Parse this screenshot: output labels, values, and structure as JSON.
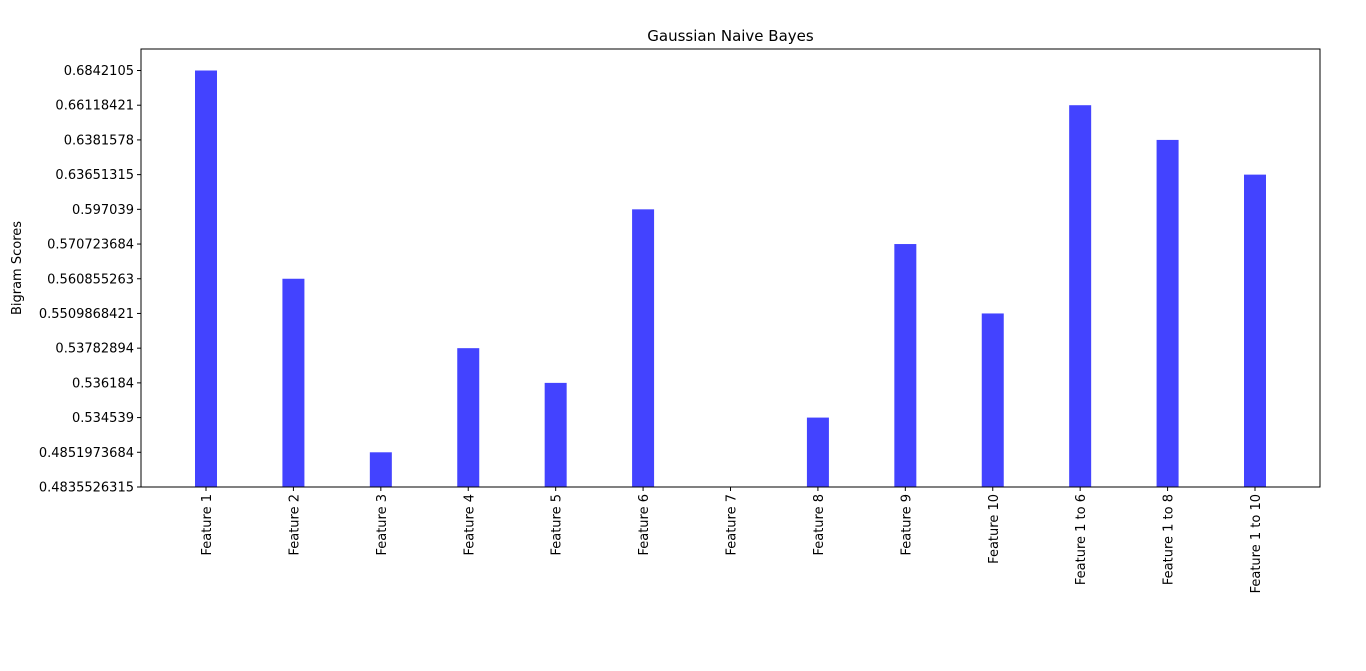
{
  "chart_data": {
    "type": "bar",
    "title": "Gaussian Naive Bayes",
    "xlabel": "",
    "ylabel": "Bigram Scores",
    "y_scale": "categorical",
    "bar_color": "#4343ff",
    "grid": false,
    "legend": "none",
    "y_tick_labels": [
      "0.4835526315",
      "0.4851973684",
      "0.534539",
      "0.536184",
      "0.53782894",
      "0.5509868421",
      "0.560855263",
      "0.570723684",
      "0.597039",
      "0.63651315",
      "0.6381578",
      "0.66118421",
      "0.6842105"
    ],
    "categories": [
      "Feature 1",
      "Feature 2",
      "Feature 3",
      "Feature 4",
      "Feature 5",
      "Feature 6",
      "Feature 7",
      "Feature 8",
      "Feature 9",
      "Feature 10",
      "Feature 1 to 6",
      "Feature 1 to 8",
      "Feature 1 to 10"
    ],
    "values": [
      "0.6842105",
      "0.560855263",
      "0.4851973684",
      "0.53782894",
      "0.536184",
      "0.597039",
      "0.4835526315",
      "0.534539",
      "0.570723684",
      "0.5509868421",
      "0.66118421",
      "0.6381578",
      "0.63651315"
    ]
  }
}
